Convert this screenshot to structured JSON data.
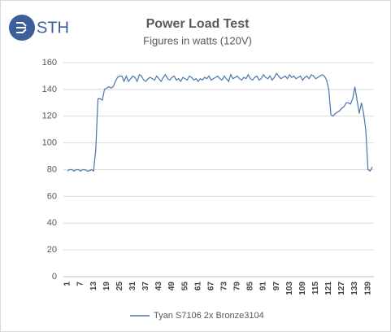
{
  "logo": "STH",
  "chart_data": {
    "type": "line",
    "title": "Power Load Test",
    "subtitle": "Figures in watts (120V)",
    "categories": [
      1,
      null,
      null,
      null,
      null,
      null,
      7,
      null,
      null,
      null,
      null,
      null,
      13,
      null,
      null,
      null,
      null,
      null,
      19,
      null,
      null,
      null,
      null,
      null,
      25,
      null,
      null,
      null,
      null,
      null,
      31,
      null,
      null,
      null,
      null,
      null,
      37,
      null,
      null,
      null,
      null,
      null,
      43,
      null,
      null,
      null,
      null,
      null,
      49,
      null,
      null,
      null,
      null,
      null,
      55,
      null,
      null,
      null,
      null,
      null,
      61,
      null,
      null,
      null,
      null,
      null,
      67,
      null,
      null,
      null,
      null,
      null,
      73,
      null,
      null,
      null,
      null,
      null,
      79,
      null,
      null,
      null,
      null,
      null,
      85,
      null,
      null,
      null,
      null,
      null,
      91,
      null,
      null,
      null,
      null,
      null,
      97,
      null,
      null,
      null,
      null,
      null,
      103,
      null,
      null,
      null,
      null,
      null,
      109,
      null,
      null,
      null,
      null,
      null,
      115,
      null,
      null,
      null,
      null,
      null,
      121,
      null,
      null,
      null,
      null,
      null,
      127,
      null,
      null,
      null,
      null,
      null,
      133,
      null,
      null,
      null,
      null,
      null,
      139,
      null,
      null
    ],
    "series": [
      {
        "name": "Tyan S7106 2x Bronze3104",
        "color": "#4a76ad",
        "values": [
          79,
          80,
          80,
          79,
          80,
          80,
          79,
          80,
          80,
          79,
          79,
          80,
          79,
          95,
          133,
          133,
          132,
          140,
          141,
          142,
          141,
          142,
          146,
          149,
          150,
          150,
          146,
          150,
          146,
          148,
          150,
          149,
          146,
          151,
          150,
          147,
          146,
          148,
          149,
          148,
          147,
          150,
          148,
          146,
          149,
          151,
          148,
          147,
          149,
          150,
          147,
          148,
          146,
          149,
          148,
          147,
          150,
          149,
          147,
          148,
          146,
          148,
          147,
          149,
          148,
          150,
          147,
          148,
          149,
          150,
          148,
          147,
          150,
          148,
          146,
          151,
          148,
          149,
          150,
          148,
          147,
          149,
          148,
          151,
          148,
          147,
          149,
          150,
          147,
          148,
          151,
          149,
          148,
          150,
          147,
          149,
          152,
          150,
          148,
          149,
          150,
          148,
          151,
          149,
          150,
          148,
          149,
          150,
          147,
          149,
          150,
          148,
          151,
          150,
          148,
          149,
          150,
          151,
          150,
          147,
          140,
          121,
          120,
          122,
          123,
          124,
          126,
          127,
          130,
          130,
          129,
          133,
          142,
          132,
          122,
          130,
          122,
          110,
          80,
          79,
          82
        ]
      }
    ],
    "ylim": [
      0,
      160
    ],
    "yticks": [
      0,
      20,
      40,
      60,
      80,
      100,
      120,
      140,
      160
    ],
    "grid": true,
    "legend": "bottom"
  }
}
